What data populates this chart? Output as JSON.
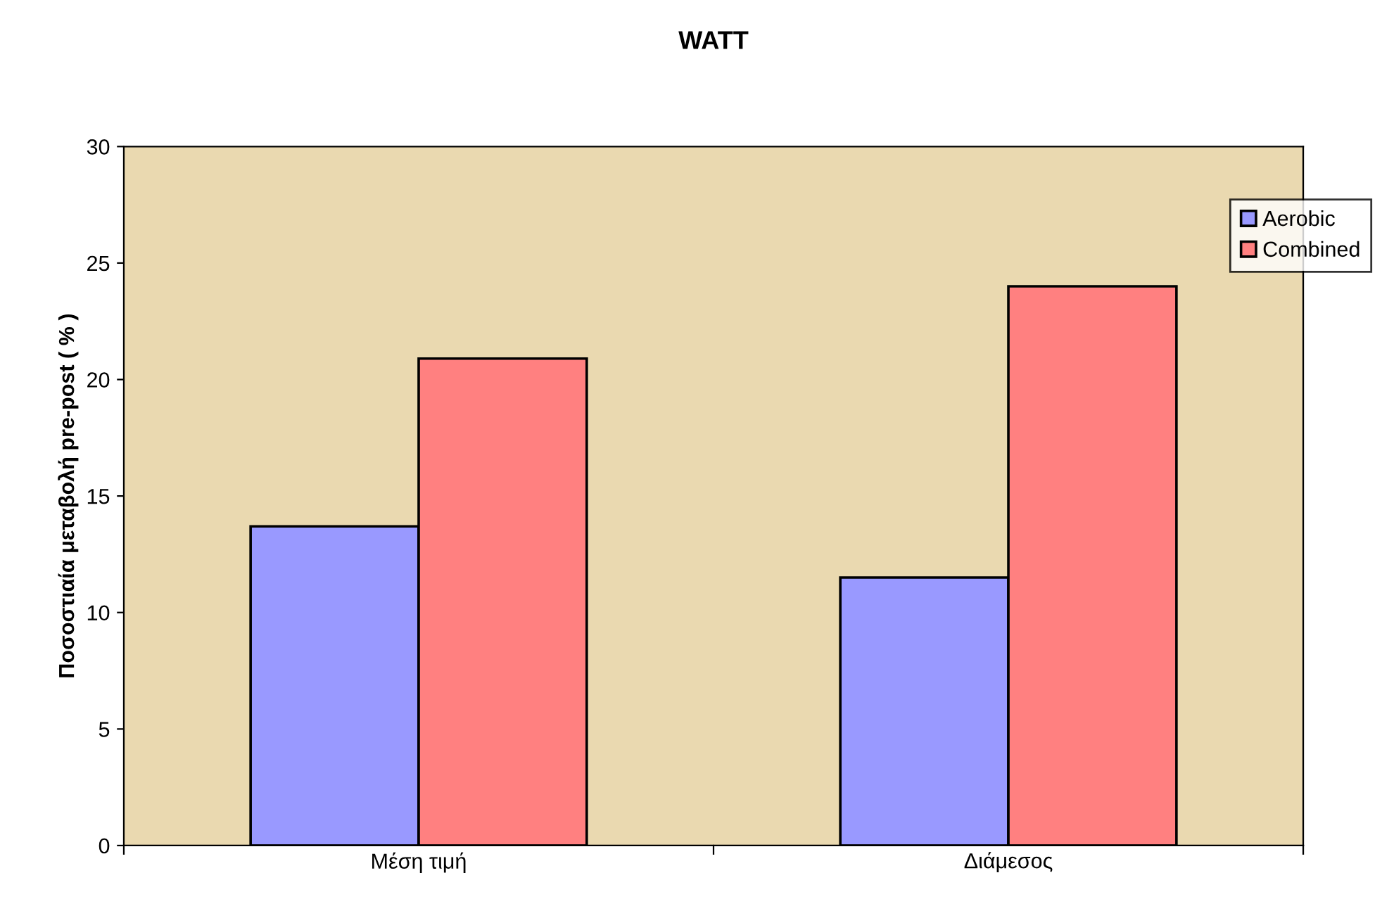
{
  "chart_data": {
    "type": "bar",
    "title": "WATT",
    "ylabel": "Ποσοστιαία μεταβολή pre-post ( % )",
    "categories": [
      "Μέση τιμή",
      "Διάμεσος"
    ],
    "series": [
      {
        "name": "Aerobic",
        "color": "#9999ff",
        "values": [
          13.7,
          11.5
        ]
      },
      {
        "name": "Combined",
        "color": "#ff8080",
        "values": [
          20.9,
          24.0
        ]
      }
    ],
    "ylim": [
      0,
      30
    ],
    "yticks": [
      0,
      5,
      10,
      15,
      20,
      25,
      30
    ],
    "grid": false,
    "legend": "top right"
  }
}
